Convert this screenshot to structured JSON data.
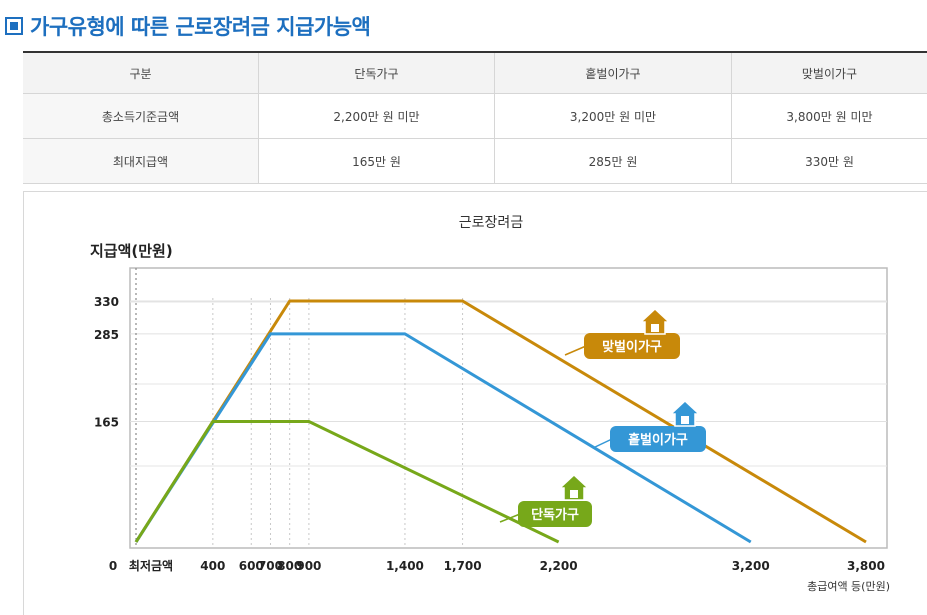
{
  "header": {
    "title": "가구유형에 따른 근로장려금 지급가능액"
  },
  "table": {
    "columns": [
      "구분",
      "단독가구",
      "홑벌이가구",
      "맞벌이가구"
    ],
    "rows": [
      [
        "총소득기준금액",
        "2,200만 원 미만",
        "3,200만 원 미만",
        "3,800만 원 미만"
      ],
      [
        "최대지급액",
        "165만 원",
        "285만 원",
        "330만 원"
      ]
    ]
  },
  "chart_data": {
    "type": "line",
    "title": "근로장려금",
    "ylabel": "지급액(만원)",
    "xlabel": "총급여액 등(만원)",
    "x_ticks": [
      "최저금액",
      "400",
      "600",
      "700",
      "800",
      "900",
      "1,400",
      "1,700",
      "2,200",
      "3,200",
      "3,800"
    ],
    "y_ticks": [
      "0",
      "165",
      "285",
      "330"
    ],
    "y_origin_label": "0",
    "grid": true,
    "series": [
      {
        "name": "맞벌이가구",
        "color": "#c8890a",
        "points": [
          [
            0,
            0
          ],
          [
            800,
            330
          ],
          [
            1700,
            330
          ],
          [
            3800,
            0
          ]
        ]
      },
      {
        "name": "홑벌이가구",
        "color": "#3497d6",
        "points": [
          [
            0,
            0
          ],
          [
            700,
            285
          ],
          [
            1400,
            285
          ],
          [
            3200,
            0
          ]
        ]
      },
      {
        "name": "단독가구",
        "color": "#77a81a",
        "points": [
          [
            0,
            0
          ],
          [
            400,
            165
          ],
          [
            900,
            165
          ],
          [
            2200,
            0
          ]
        ]
      }
    ],
    "legend_icon": "house-icon"
  }
}
